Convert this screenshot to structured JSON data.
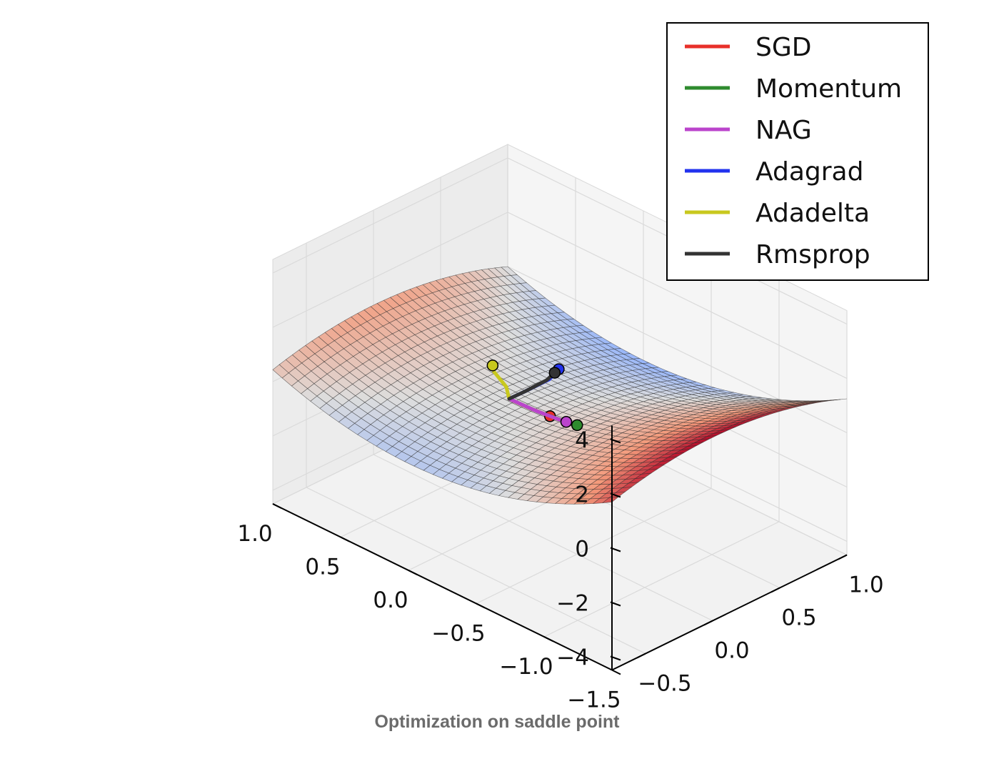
{
  "caption": "Optimization on saddle point",
  "chart_data": {
    "type": "surface3d",
    "function": "z = x^2 - y^2",
    "x_ticks": [
      "1.0",
      "0.5",
      "0.0",
      "−0.5",
      "−1.0",
      "−1.5"
    ],
    "y_ticks": [
      "−0.5",
      "0.0",
      "0.5",
      "1.0"
    ],
    "z_ticks": [
      "4",
      "2",
      "0",
      "−2",
      "−4"
    ],
    "xlim": [
      -1.5,
      1.0
    ],
    "ylim": [
      -0.75,
      1.0
    ],
    "zlim": [
      -4.5,
      4.5
    ],
    "colormap": "coolwarm",
    "legend": {
      "position": "top-right",
      "entries": [
        {
          "name": "SGD",
          "color": "#e8302a"
        },
        {
          "name": "Momentum",
          "color": "#2e8b2e"
        },
        {
          "name": "NAG",
          "color": "#bb44cc"
        },
        {
          "name": "Adagrad",
          "color": "#2233ee"
        },
        {
          "name": "Adadelta",
          "color": "#c8c81e"
        },
        {
          "name": "Rmsprop",
          "color": "#333333"
        }
      ]
    },
    "series": [
      {
        "name": "SGD",
        "color": "#e8302a",
        "x": [
          0.0,
          -0.05,
          -0.15,
          -0.3
        ],
        "y": [
          1e-05,
          0.0003,
          0.0008,
          0.0012
        ]
      },
      {
        "name": "Momentum",
        "color": "#2e8b2e",
        "x": [
          0.0,
          -0.2,
          -0.4,
          -0.5
        ],
        "y": [
          1e-05,
          0.0004,
          0.0009,
          0.0012
        ]
      },
      {
        "name": "NAG",
        "color": "#bb44cc",
        "x": [
          0.0,
          -0.2,
          -0.35,
          -0.42
        ],
        "y": [
          1e-05,
          0.0004,
          0.0008,
          0.001
        ]
      },
      {
        "name": "Adagrad",
        "color": "#2233ee",
        "x": [
          0.0,
          0.0,
          0.02,
          0.08
        ],
        "y": [
          1e-05,
          0.12,
          0.32,
          0.45
        ]
      },
      {
        "name": "Adadelta",
        "color": "#c8c81e",
        "x": [
          0.0,
          0.1,
          0.25,
          0.3
        ],
        "y": [
          1e-05,
          0.08,
          0.14,
          0.18
        ]
      },
      {
        "name": "Rmsprop",
        "color": "#333333",
        "x": [
          0.0,
          0.0,
          0.02,
          0.06
        ],
        "y": [
          1e-05,
          0.12,
          0.3,
          0.4
        ]
      }
    ]
  }
}
